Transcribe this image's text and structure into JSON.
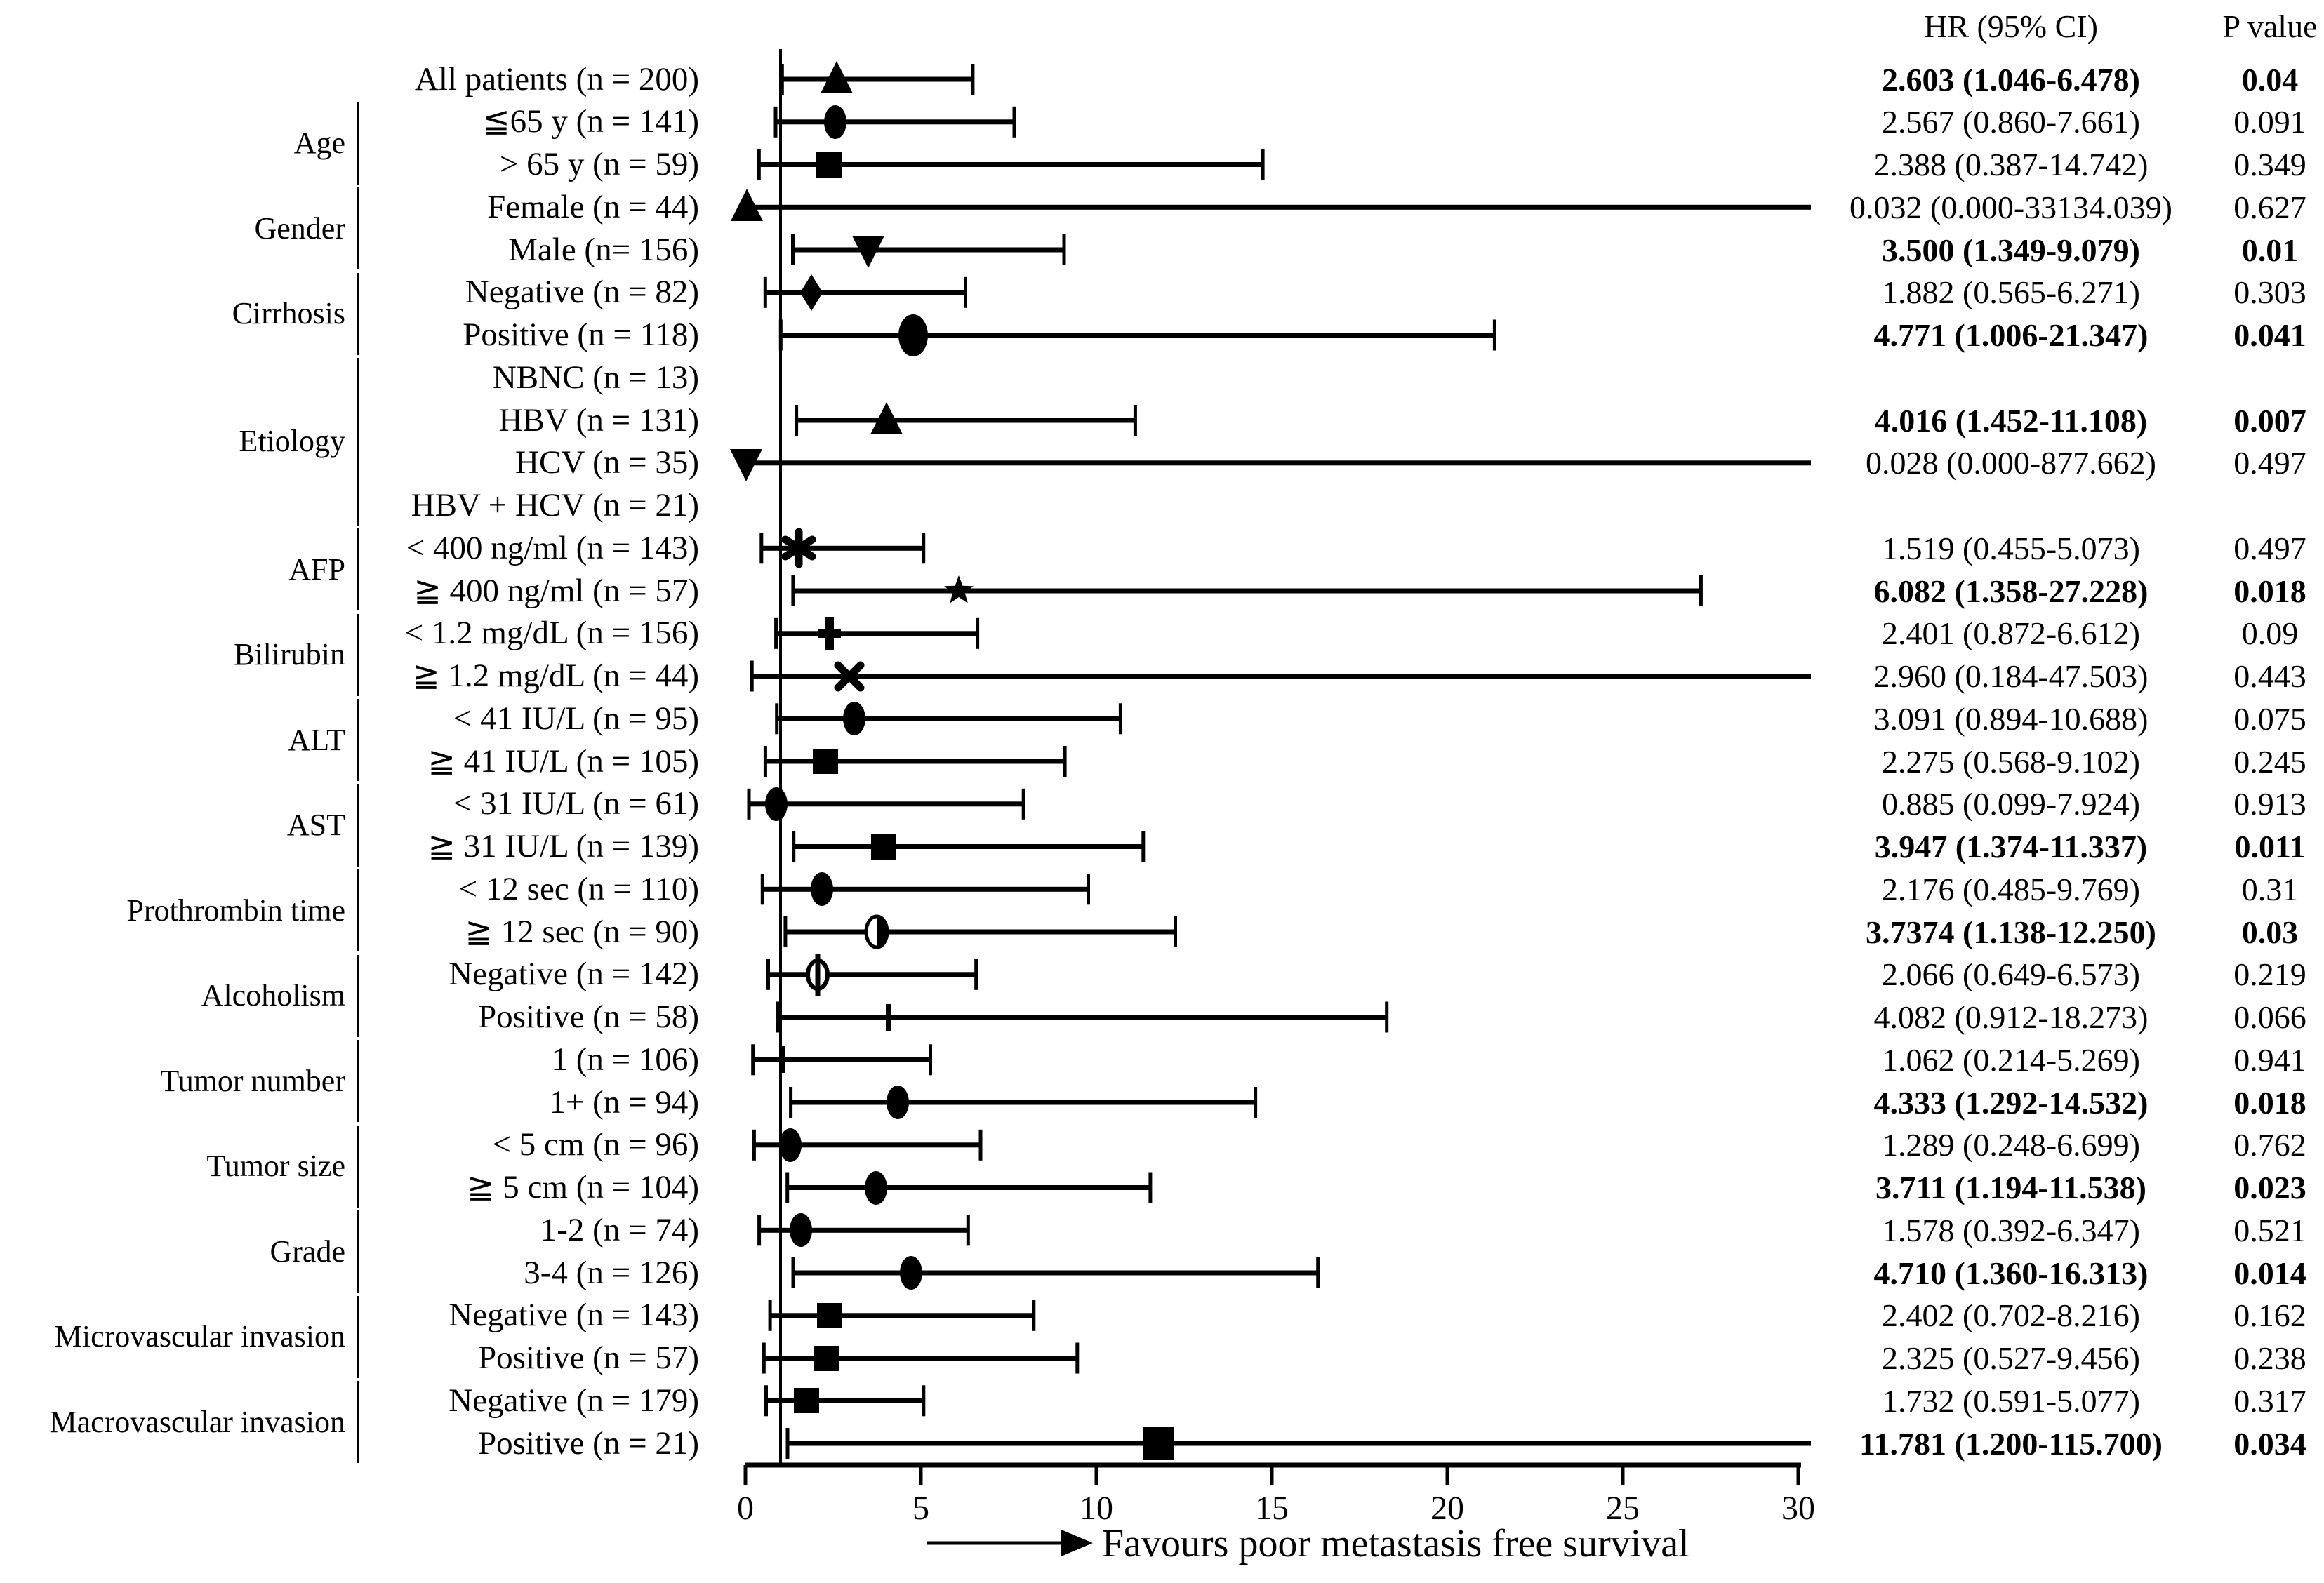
{
  "header": {
    "hr_ci_label": "HR (95% CI)",
    "p_label": "P value"
  },
  "footer": {
    "favours_label": "Favours poor metastasis free survival"
  },
  "colors": {
    "foreground": "#000000",
    "background": "#ffffff"
  },
  "chart_data": {
    "type": "forest",
    "title": "",
    "xlabel": "Favours poor metastasis free survival",
    "xlim": [
      0,
      30
    ],
    "x_ticks": [
      0,
      5,
      10,
      15,
      20,
      25,
      30
    ],
    "reference_line": 1,
    "legend_position": "none",
    "grid": false,
    "groups": [
      {
        "label": "Age",
        "first_row": 1,
        "last_row": 2
      },
      {
        "label": "Gender",
        "first_row": 3,
        "last_row": 4
      },
      {
        "label": "Cirrhosis",
        "first_row": 5,
        "last_row": 6
      },
      {
        "label": "Etiology",
        "first_row": 7,
        "last_row": 10
      },
      {
        "label": "AFP",
        "first_row": 11,
        "last_row": 12
      },
      {
        "label": "Bilirubin",
        "first_row": 13,
        "last_row": 14
      },
      {
        "label": "ALT",
        "first_row": 15,
        "last_row": 16
      },
      {
        "label": "AST",
        "first_row": 17,
        "last_row": 18
      },
      {
        "label": "Prothrombin time",
        "first_row": 19,
        "last_row": 20
      },
      {
        "label": "Alcoholism",
        "first_row": 21,
        "last_row": 22
      },
      {
        "label": "Tumor number",
        "first_row": 23,
        "last_row": 24
      },
      {
        "label": "Tumor size",
        "first_row": 25,
        "last_row": 26
      },
      {
        "label": "Grade",
        "first_row": 27,
        "last_row": 28
      },
      {
        "label": "Microvascular invasion",
        "first_row": 29,
        "last_row": 30
      },
      {
        "label": "Macrovascular invasion",
        "first_row": 31,
        "last_row": 32
      }
    ],
    "rows": [
      {
        "label": "All patients (n = 200)",
        "marker": "triangle-up",
        "hr": 2.603,
        "lo": 1.046,
        "hi": 6.478,
        "hr_ci": "2.603 (1.046-6.478)",
        "p": "0.04",
        "bold": true
      },
      {
        "label": "≦65 y (n = 141)",
        "marker": "circle",
        "hr": 2.567,
        "lo": 0.86,
        "hi": 7.661,
        "hr_ci": "2.567 (0.860-7.661)",
        "p": "0.091",
        "bold": false
      },
      {
        "label": "> 65 y (n = 59)",
        "marker": "square",
        "hr": 2.388,
        "lo": 0.387,
        "hi": 14.742,
        "hr_ci": "2.388 (0.387-14.742)",
        "p": "0.349",
        "bold": false
      },
      {
        "label": "Female (n = 44)",
        "marker": "triangle-up",
        "hr": 0.032,
        "lo": 0.0,
        "hi": 33134.039,
        "hr_ci": "0.032 (0.000-33134.039)",
        "p": "0.627",
        "bold": false
      },
      {
        "label": "Male (n= 156)",
        "marker": "triangle-down",
        "hr": 3.5,
        "lo": 1.349,
        "hi": 9.079,
        "hr_ci": "3.500 (1.349-9.079)",
        "p": "0.01",
        "bold": true
      },
      {
        "label": "Negative (n = 82)",
        "marker": "diamond",
        "hr": 1.882,
        "lo": 0.565,
        "hi": 6.271,
        "hr_ci": "1.882 (0.565-6.271)",
        "p": "0.303",
        "bold": false
      },
      {
        "label": "Positive (n = 118)",
        "marker": "circle-large",
        "hr": 4.771,
        "lo": 1.006,
        "hi": 21.347,
        "hr_ci": "4.771 (1.006-21.347)",
        "p": "0.041",
        "bold": true
      },
      {
        "label": "NBNC (n = 13)",
        "marker": "none",
        "hr": null,
        "lo": null,
        "hi": null,
        "hr_ci": "",
        "p": "",
        "bold": false
      },
      {
        "label": "HBV (n = 131)",
        "marker": "triangle-up",
        "hr": 4.016,
        "lo": 1.452,
        "hi": 11.108,
        "hr_ci": "4.016 (1.452-11.108)",
        "p": "0.007",
        "bold": true
      },
      {
        "label": "HCV (n = 35)",
        "marker": "triangle-down",
        "hr": 0.028,
        "lo": 0.0,
        "hi": 877.662,
        "hr_ci": "0.028 (0.000-877.662)",
        "p": "0.497",
        "bold": false
      },
      {
        "label": "HBV + HCV (n = 21)",
        "marker": "none",
        "hr": null,
        "lo": null,
        "hi": null,
        "hr_ci": "",
        "p": "",
        "bold": false
      },
      {
        "label": "< 400 ng/ml (n = 143)",
        "marker": "asterisk",
        "hr": 1.519,
        "lo": 0.455,
        "hi": 5.073,
        "hr_ci": "1.519 (0.455-5.073)",
        "p": "0.497",
        "bold": false
      },
      {
        "label": "≧ 400 ng/ml (n = 57)",
        "marker": "star",
        "hr": 6.082,
        "lo": 1.358,
        "hi": 27.228,
        "hr_ci": "6.082 (1.358-27.228)",
        "p": "0.018",
        "bold": true
      },
      {
        "label": "< 1.2 mg/dL (n = 156)",
        "marker": "plus",
        "hr": 2.401,
        "lo": 0.872,
        "hi": 6.612,
        "hr_ci": "2.401 (0.872-6.612)",
        "p": "0.09",
        "bold": false
      },
      {
        "label": "≧ 1.2 mg/dL (n = 44)",
        "marker": "x-cross",
        "hr": 2.96,
        "lo": 0.184,
        "hi": 47.503,
        "hr_ci": "2.960 (0.184-47.503)",
        "p": "0.443",
        "bold": false
      },
      {
        "label": "< 41 IU/L (n = 95)",
        "marker": "circle",
        "hr": 3.091,
        "lo": 0.894,
        "hi": 10.688,
        "hr_ci": "3.091 (0.894-10.688)",
        "p": "0.075",
        "bold": false
      },
      {
        "label": "≧ 41 IU/L (n = 105)",
        "marker": "square",
        "hr": 2.275,
        "lo": 0.568,
        "hi": 9.102,
        "hr_ci": "2.275 (0.568-9.102)",
        "p": "0.245",
        "bold": false
      },
      {
        "label": "< 31 IU/L (n = 61)",
        "marker": "circle",
        "hr": 0.885,
        "lo": 0.099,
        "hi": 7.924,
        "hr_ci": "0.885 (0.099-7.924)",
        "p": "0.913",
        "bold": false
      },
      {
        "label": "≧ 31 IU/L (n = 139)",
        "marker": "square",
        "hr": 3.947,
        "lo": 1.374,
        "hi": 11.337,
        "hr_ci": "3.947 (1.374-11.337)",
        "p": "0.011",
        "bold": true
      },
      {
        "label": "< 12 sec (n = 110)",
        "marker": "circle",
        "hr": 2.176,
        "lo": 0.485,
        "hi": 9.769,
        "hr_ci": "2.176 (0.485-9.769)",
        "p": "0.31",
        "bold": false
      },
      {
        "label": "≧ 12 sec (n = 90)",
        "marker": "circle-half",
        "hr": 3.7374,
        "lo": 1.138,
        "hi": 12.25,
        "hr_ci": "3.7374 (1.138-12.250)",
        "p": "0.03",
        "bold": true
      },
      {
        "label": "Negative (n = 142)",
        "marker": "circle-slash",
        "hr": 2.066,
        "lo": 0.649,
        "hi": 6.573,
        "hr_ci": "2.066 (0.649-6.573)",
        "p": "0.219",
        "bold": false
      },
      {
        "label": "Positive (n = 58)",
        "marker": "tick",
        "hr": 4.082,
        "lo": 0.912,
        "hi": 18.273,
        "hr_ci": "4.082 (0.912-18.273)",
        "p": "0.066",
        "bold": false
      },
      {
        "label": "1 (n = 106)",
        "marker": "tick",
        "hr": 1.062,
        "lo": 0.214,
        "hi": 5.269,
        "hr_ci": "1.062 (0.214-5.269)",
        "p": "0.941",
        "bold": false
      },
      {
        "label": "1+ (n = 94)",
        "marker": "circle",
        "hr": 4.333,
        "lo": 1.292,
        "hi": 14.532,
        "hr_ci": "4.333 (1.292-14.532)",
        "p": "0.018",
        "bold": true
      },
      {
        "label": "< 5 cm (n = 96)",
        "marker": "circle",
        "hr": 1.289,
        "lo": 0.248,
        "hi": 6.699,
        "hr_ci": "1.289 (0.248-6.699)",
        "p": "0.762",
        "bold": false
      },
      {
        "label": "≧ 5 cm (n = 104)",
        "marker": "circle",
        "hr": 3.711,
        "lo": 1.194,
        "hi": 11.538,
        "hr_ci": "3.711 (1.194-11.538)",
        "p": "0.023",
        "bold": true
      },
      {
        "label": "1-2 (n = 74)",
        "marker": "circle",
        "hr": 1.578,
        "lo": 0.392,
        "hi": 6.347,
        "hr_ci": "1.578 (0.392-6.347)",
        "p": "0.521",
        "bold": false
      },
      {
        "label": "3-4 (n = 126)",
        "marker": "circle",
        "hr": 4.71,
        "lo": 1.36,
        "hi": 16.313,
        "hr_ci": "4.710 (1.360-16.313)",
        "p": "0.014",
        "bold": true
      },
      {
        "label": "Negative (n = 143)",
        "marker": "square",
        "hr": 2.402,
        "lo": 0.702,
        "hi": 8.216,
        "hr_ci": "2.402 (0.702-8.216)",
        "p": "0.162",
        "bold": false
      },
      {
        "label": "Positive (n = 57)",
        "marker": "square",
        "hr": 2.325,
        "lo": 0.527,
        "hi": 9.456,
        "hr_ci": "2.325 (0.527-9.456)",
        "p": "0.238",
        "bold": false
      },
      {
        "label": "Negative (n = 179)",
        "marker": "square",
        "hr": 1.732,
        "lo": 0.591,
        "hi": 5.077,
        "hr_ci": "1.732 (0.591-5.077)",
        "p": "0.317",
        "bold": false
      },
      {
        "label": "Positive (n = 21)",
        "marker": "square-large",
        "hr": 11.781,
        "lo": 1.2,
        "hi": 115.7,
        "hr_ci": "11.781 (1.200-115.700)",
        "p": "0.034",
        "bold": true
      }
    ]
  }
}
